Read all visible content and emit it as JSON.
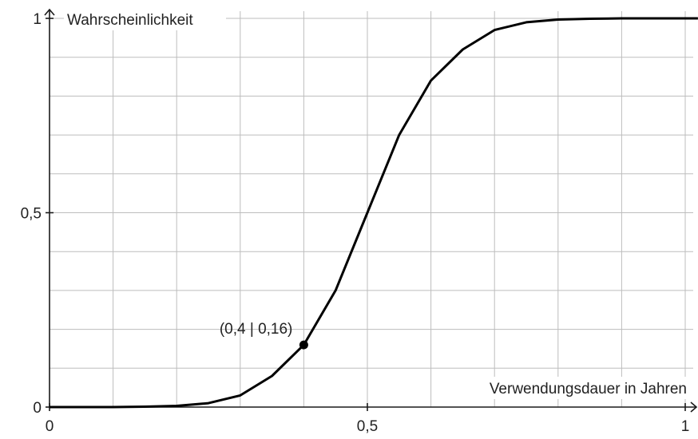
{
  "chart_data": {
    "type": "line",
    "title": "",
    "xlabel": "Verwendungsdauer in Jahren",
    "ylabel": "Wahrscheinlichkeit",
    "xlim": [
      0,
      1.02
    ],
    "ylim": [
      0,
      1
    ],
    "grid": true,
    "x_ticks": [
      {
        "value": 0,
        "label": "0"
      },
      {
        "value": 0.5,
        "label": "0,5"
      },
      {
        "value": 1,
        "label": "1"
      }
    ],
    "y_ticks": [
      {
        "value": 0,
        "label": "0"
      },
      {
        "value": 0.5,
        "label": "0,5"
      },
      {
        "value": 1,
        "label": "1"
      }
    ],
    "x_grid_step": 0.1,
    "y_grid_step": 0.1,
    "series": [
      {
        "color": "#000000",
        "x": [
          0,
          0.1,
          0.15,
          0.2,
          0.25,
          0.3,
          0.35,
          0.4,
          0.45,
          0.5,
          0.55,
          0.6,
          0.65,
          0.7,
          0.75,
          0.8,
          0.85,
          0.9,
          1.0,
          1.02
        ],
        "y": [
          0,
          0,
          0.001,
          0.003,
          0.01,
          0.03,
          0.08,
          0.16,
          0.3,
          0.5,
          0.7,
          0.84,
          0.92,
          0.97,
          0.99,
          0.997,
          0.999,
          1,
          1,
          1
        ]
      }
    ],
    "points": [
      {
        "x": 0.4,
        "y": 0.16,
        "label": "(0,4 | 0,16)"
      }
    ]
  }
}
